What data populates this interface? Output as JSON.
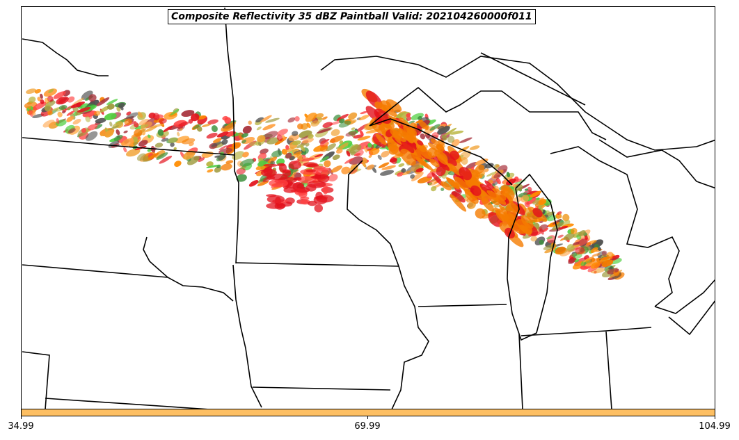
{
  "title": "Composite Reflectivity 35 dBZ Paintball Valid: 202104260000f011",
  "colorbar": {
    "color": "#fdbf63",
    "tick_labels": [
      "34.99",
      "69.99",
      "104.99"
    ]
  },
  "paint_colors": [
    "#e3121c",
    "#f57c00",
    "#ff8c00",
    "#4fcf3f",
    "#3a8f3a",
    "#9e9a3c",
    "#b8b440",
    "#a8323c",
    "#f0a030",
    "#505050",
    "#ff4040",
    "#ff9f3f"
  ]
}
